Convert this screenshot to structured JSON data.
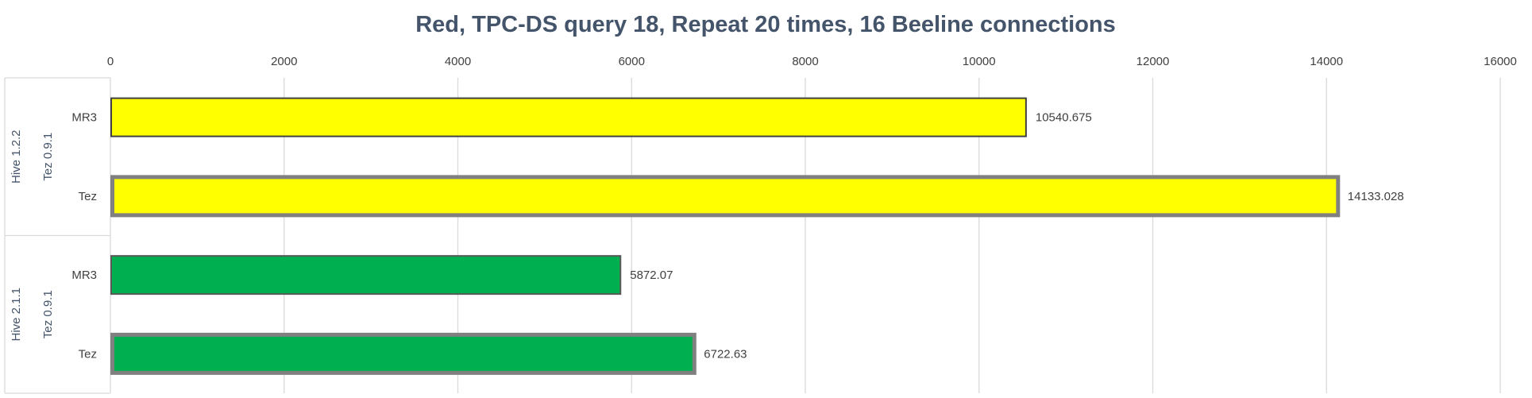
{
  "chart_data": {
    "type": "bar",
    "orientation": "horizontal",
    "title": "Red, TPC-DS query 18, Repeat 20 times, 16 Beeline connections",
    "xlim": [
      0,
      16000
    ],
    "ticks": [
      0,
      2000,
      4000,
      6000,
      8000,
      10000,
      12000,
      14000,
      16000
    ],
    "grid": true,
    "axis_position": "top",
    "groups": [
      {
        "label": "Hive 1.2.2",
        "sublabel": "Tez 0.9.1",
        "bars": [
          {
            "category": "MR3",
            "value": 10540.675,
            "label": "10540.675",
            "color": "#FFFF00",
            "border": "#404040"
          },
          {
            "category": "Tez",
            "value": 14133.028,
            "label": "14133.028",
            "color": "#FFFF00",
            "border": "#808080"
          }
        ]
      },
      {
        "label": "Hive 2.1.1",
        "sublabel": "Tez 0.9.1",
        "bars": [
          {
            "category": "MR3",
            "value": 5872.07,
            "label": "5872.07",
            "color": "#00B050",
            "border": "#595959"
          },
          {
            "category": "Tez",
            "value": 6722.63,
            "label": "6722.63",
            "color": "#00B050",
            "border": "#808080"
          }
        ]
      }
    ]
  }
}
